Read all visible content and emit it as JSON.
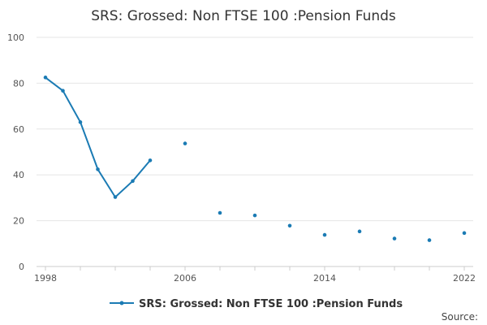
{
  "chart_data": {
    "type": "line",
    "title": "SRS: Grossed: Non FTSE 100 :Pension Funds",
    "xlabel": "",
    "ylabel": "",
    "ylim": [
      0,
      100
    ],
    "xlim": [
      1998,
      2022
    ],
    "yticks": [
      0,
      20,
      40,
      60,
      80,
      100
    ],
    "xticks": [
      1998,
      2006,
      2014,
      2022
    ],
    "grid": true,
    "legend_position": "bottom",
    "series": [
      {
        "name": "SRS: Grossed: Non FTSE 100 :Pension Funds",
        "color": "#1b7bb4",
        "points": [
          {
            "x": 1998,
            "y": 82.5
          },
          {
            "x": 1999,
            "y": 76.7
          },
          {
            "x": 2000,
            "y": 63.0
          },
          {
            "x": 2001,
            "y": 42.4
          },
          {
            "x": 2002,
            "y": 30.3
          },
          {
            "x": 2003,
            "y": 37.3
          },
          {
            "x": 2004,
            "y": 46.3
          },
          {
            "x": 2006,
            "y": 53.7
          },
          {
            "x": 2008,
            "y": 23.4
          },
          {
            "x": 2010,
            "y": 22.3
          },
          {
            "x": 2012,
            "y": 17.8
          },
          {
            "x": 2014,
            "y": 13.8
          },
          {
            "x": 2016,
            "y": 15.3
          },
          {
            "x": 2018,
            "y": 12.2
          },
          {
            "x": 2020,
            "y": 11.5
          },
          {
            "x": 2022,
            "y": 14.6
          }
        ]
      }
    ]
  },
  "footer": {
    "source_label": "Source:"
  }
}
